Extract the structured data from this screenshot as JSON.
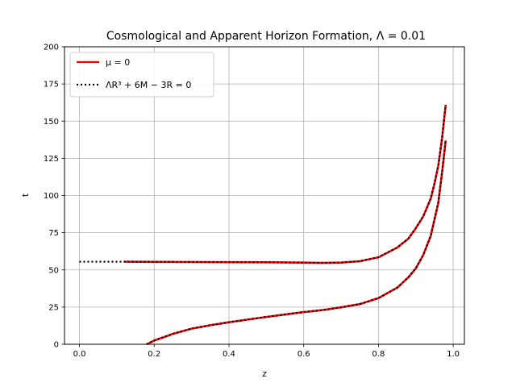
{
  "chart_data": {
    "type": "line",
    "title": "Cosmological and Apparent Horizon Formation, Λ = 0.01",
    "xlabel": "z",
    "ylabel": "t",
    "xlim": [
      -0.04,
      1.03
    ],
    "ylim": [
      0,
      200
    ],
    "grid": true,
    "legend_position": "top-left",
    "x_ticks": [
      0.0,
      0.2,
      0.4,
      0.6,
      0.8,
      1.0
    ],
    "x_tick_labels": [
      "0.0",
      "0.2",
      "0.4",
      "0.6",
      "0.8",
      "1.0"
    ],
    "y_ticks": [
      0,
      25,
      50,
      75,
      100,
      125,
      150,
      175,
      200
    ],
    "y_tick_labels": [
      "0",
      "25",
      "50",
      "75",
      "100",
      "125",
      "150",
      "175",
      "200"
    ],
    "legend": [
      {
        "label": "μ = 0",
        "color": "#ff0000",
        "style": "solid"
      },
      {
        "label": "ΛR³ + 6M − 3R = 0",
        "color": "#000000",
        "style": "dotted"
      }
    ],
    "series": [
      {
        "color": "#ff0000",
        "style": "solid",
        "x": [
          0.12,
          0.2,
          0.3,
          0.4,
          0.5,
          0.6,
          0.65,
          0.7,
          0.75,
          0.8,
          0.85,
          0.88,
          0.9,
          0.92,
          0.94,
          0.95,
          0.96,
          0.97,
          0.98
        ],
        "y": [
          55.5,
          55.4,
          55.3,
          55.2,
          55.1,
          54.9,
          54.7,
          54.9,
          55.8,
          58.5,
          65,
          71,
          78,
          86,
          98,
          108,
          120,
          138,
          161
        ]
      },
      {
        "color": "#000000",
        "style": "dotted",
        "x": [
          0.0,
          0.05,
          0.1,
          0.12,
          0.2,
          0.3,
          0.4,
          0.5,
          0.6,
          0.65,
          0.7,
          0.75,
          0.8,
          0.85,
          0.88,
          0.9,
          0.92,
          0.94,
          0.95,
          0.96,
          0.97,
          0.98
        ],
        "y": [
          55.5,
          55.5,
          55.5,
          55.5,
          55.4,
          55.3,
          55.2,
          55.1,
          54.9,
          54.7,
          54.9,
          55.8,
          58.5,
          65,
          71,
          78,
          86,
          98,
          108,
          120,
          138,
          161
        ]
      },
      {
        "color": "#ff0000",
        "style": "solid",
        "x": [
          0.18,
          0.2,
          0.25,
          0.3,
          0.35,
          0.4,
          0.45,
          0.5,
          0.55,
          0.6,
          0.65,
          0.7,
          0.75,
          0.8,
          0.85,
          0.88,
          0.9,
          0.92,
          0.94,
          0.96,
          0.97,
          0.98
        ],
        "y": [
          0,
          2.5,
          7,
          10.5,
          12.8,
          14.8,
          16.6,
          18.4,
          20,
          21.6,
          23,
          24.8,
          27,
          31,
          38,
          45,
          51,
          60,
          73,
          95,
          115,
          137
        ]
      },
      {
        "color": "#000000",
        "style": "dotted",
        "x": [
          0.18,
          0.2,
          0.25,
          0.3,
          0.35,
          0.4,
          0.45,
          0.5,
          0.55,
          0.6,
          0.65,
          0.7,
          0.75,
          0.8,
          0.85,
          0.88,
          0.9,
          0.92,
          0.94,
          0.96,
          0.97,
          0.98
        ],
        "y": [
          0,
          2.5,
          7,
          10.5,
          12.8,
          14.8,
          16.6,
          18.4,
          20,
          21.6,
          23,
          24.8,
          27,
          31,
          38,
          45,
          51,
          60,
          73,
          95,
          115,
          137
        ]
      }
    ]
  }
}
